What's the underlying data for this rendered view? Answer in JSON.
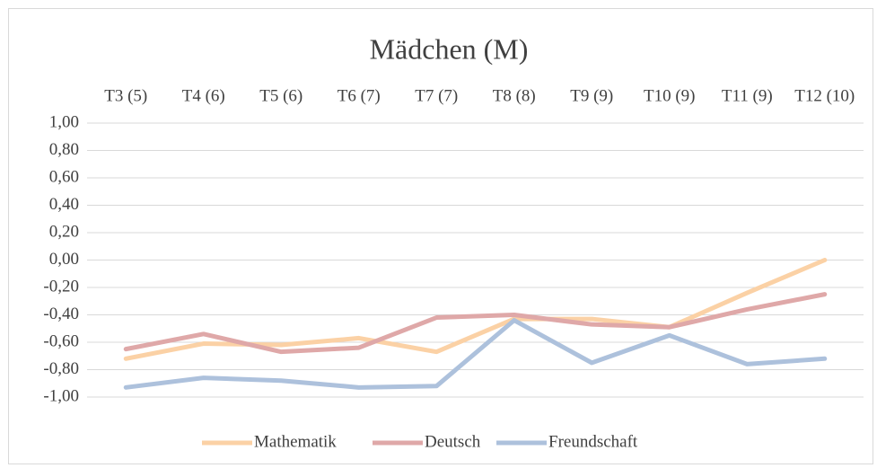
{
  "chart_data": {
    "type": "line",
    "title": "Mädchen (M)",
    "categories": [
      "T3 (5)",
      "T4 (6)",
      "T5 (6)",
      "T6 (7)",
      "T7 (7)",
      "T8 (8)",
      "T9 (9)",
      "T10 (9)",
      "T11 (9)",
      "T12 (10)"
    ],
    "series": [
      {
        "name": "Mathematik",
        "color": "#fbd1a5",
        "values": [
          -0.72,
          -0.61,
          -0.62,
          -0.57,
          -0.67,
          -0.43,
          -0.43,
          -0.49,
          -0.24,
          0.0
        ]
      },
      {
        "name": "Deutsch",
        "color": "#dfa8a8",
        "values": [
          -0.65,
          -0.54,
          -0.67,
          -0.64,
          -0.42,
          -0.4,
          -0.47,
          -0.49,
          -0.36,
          -0.25
        ]
      },
      {
        "name": "Freundschaft",
        "color": "#adc1dc",
        "values": [
          -0.93,
          -0.86,
          -0.88,
          -0.93,
          -0.92,
          -0.44,
          -0.75,
          -0.55,
          -0.76,
          -0.72
        ]
      }
    ],
    "ylim": [
      -1,
      1
    ],
    "yticks": [
      {
        "value": 1,
        "label": "1,00"
      },
      {
        "value": 0.8,
        "label": "0,80"
      },
      {
        "value": 0.6,
        "label": "0,60"
      },
      {
        "value": 0.4,
        "label": "0,40"
      },
      {
        "value": 0.2,
        "label": "0,20"
      },
      {
        "value": 0,
        "label": "0,00"
      },
      {
        "value": -0.2,
        "label": "-0,20"
      },
      {
        "value": -0.4,
        "label": "-0,40"
      },
      {
        "value": -0.6,
        "label": "-0,60"
      },
      {
        "value": -0.8,
        "label": "-0,80"
      },
      {
        "value": -1,
        "label": "-1,00"
      }
    ],
    "grid": true,
    "legend": "bottom"
  }
}
